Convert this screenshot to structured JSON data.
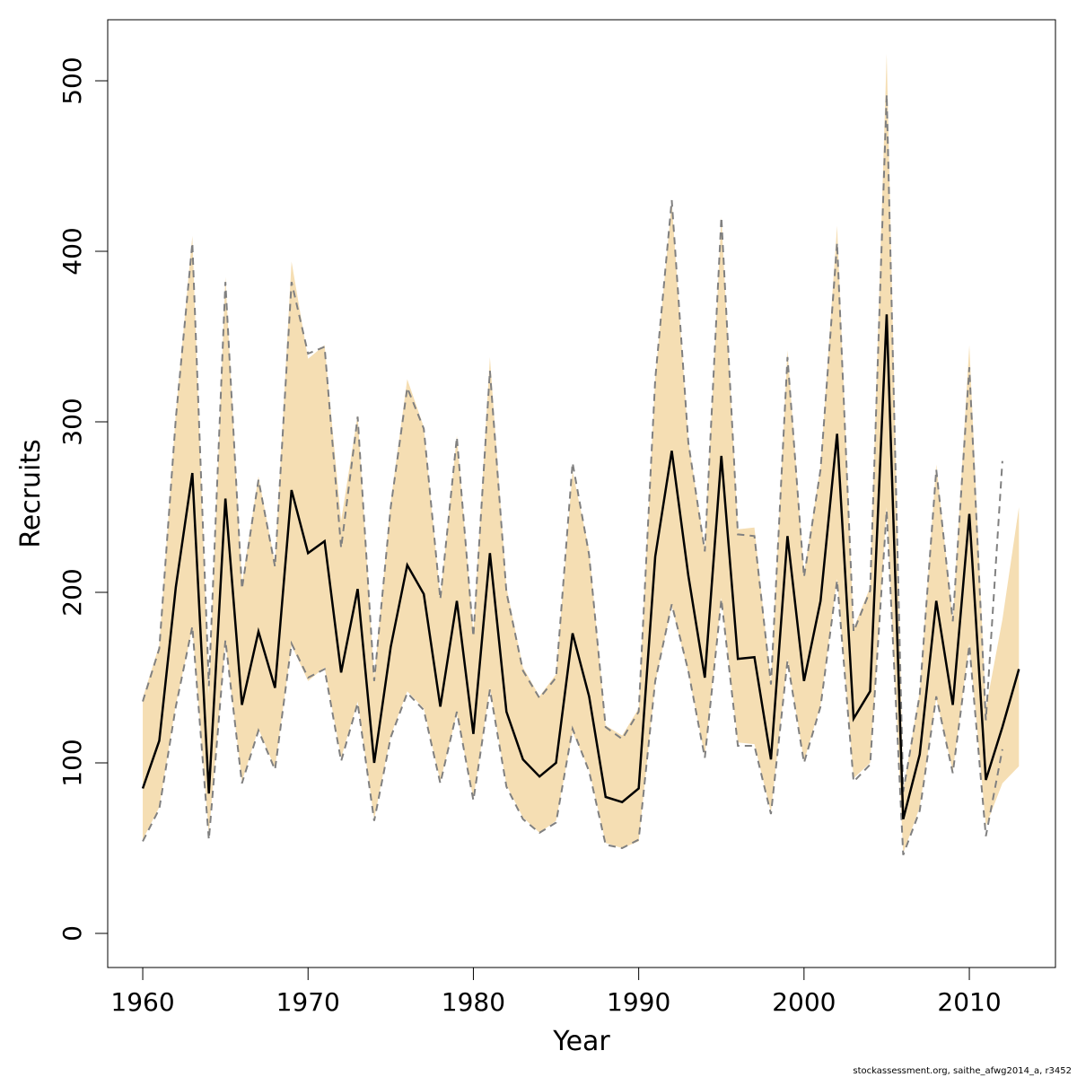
{
  "chart_data": {
    "type": "line",
    "xlabel": "Year",
    "ylabel": "Recruits",
    "footer": "stockassessment.org, saithe_afwg2014_a, r3452",
    "x": [
      1960,
      1961,
      1962,
      1963,
      1964,
      1965,
      1966,
      1967,
      1968,
      1969,
      1970,
      1971,
      1972,
      1973,
      1974,
      1975,
      1976,
      1977,
      1978,
      1979,
      1980,
      1981,
      1982,
      1983,
      1984,
      1985,
      1986,
      1987,
      1988,
      1989,
      1990,
      1991,
      1992,
      1993,
      1994,
      1995,
      1996,
      1997,
      1998,
      1999,
      2000,
      2001,
      2002,
      2003,
      2004,
      2005,
      2006,
      2007,
      2008,
      2009,
      2010,
      2011,
      2012,
      2013
    ],
    "line": {
      "color": "#000000",
      "values": [
        85,
        113,
        203,
        270,
        82,
        255,
        134,
        177,
        144,
        260,
        223,
        230,
        153,
        202,
        100,
        168,
        216,
        199,
        133,
        195,
        117,
        223,
        130,
        102,
        92,
        100,
        176,
        139,
        80,
        77,
        85,
        221,
        283,
        210,
        150,
        280,
        161,
        162,
        102,
        233,
        148,
        195,
        293,
        126,
        142,
        363,
        67,
        105,
        195,
        134,
        246,
        90,
        121,
        155
      ]
    },
    "band": {
      "color": "#f5deb3",
      "upper": [
        138,
        169,
        305,
        409,
        140,
        385,
        205,
        268,
        217,
        394,
        337,
        345,
        242,
        304,
        150,
        253,
        325,
        297,
        197,
        292,
        176,
        338,
        203,
        156,
        139,
        152,
        271,
        225,
        122,
        116,
        132,
        326,
        429,
        289,
        226,
        420,
        237,
        238,
        147,
        342,
        211,
        274,
        415,
        179,
        203,
        516,
        84,
        142,
        275,
        184,
        345,
        132,
        184,
        250
      ],
      "lower": [
        55,
        74,
        134,
        179,
        58,
        171,
        89,
        120,
        97,
        169,
        148,
        156,
        103,
        136,
        67,
        116,
        142,
        132,
        89,
        129,
        79,
        144,
        87,
        68,
        59,
        66,
        118,
        96,
        53,
        50,
        54,
        147,
        192,
        153,
        104,
        197,
        112,
        111,
        71,
        161,
        101,
        134,
        208,
        91,
        100,
        250,
        47,
        74,
        138,
        95,
        170,
        63,
        88,
        98
      ]
    },
    "previous": {
      "color": "#808080",
      "upper": [
        136,
        167,
        302,
        405,
        145,
        382,
        202,
        266,
        215,
        382,
        340,
        344,
        226,
        303,
        148,
        250,
        320,
        296,
        196,
        291,
        174,
        330,
        200,
        154,
        138,
        150,
        276,
        222,
        121,
        114,
        130,
        325,
        430,
        288,
        224,
        420,
        234,
        233,
        146,
        338,
        209,
        272,
        405,
        177,
        201,
        492,
        83,
        140,
        272,
        183,
        332,
        125,
        277,
        null
      ],
      "lower": [
        54,
        73,
        133,
        180,
        55,
        172,
        88,
        119,
        96,
        170,
        150,
        155,
        101,
        135,
        66,
        115,
        141,
        131,
        88,
        130,
        78,
        143,
        86,
        67,
        59,
        65,
        120,
        95,
        52,
        50,
        55,
        148,
        193,
        154,
        103,
        196,
        110,
        110,
        70,
        160,
        100,
        133,
        207,
        89,
        99,
        248,
        46,
        72,
        139,
        94,
        169,
        57,
        108,
        null
      ]
    },
    "xlim": [
      1957.88,
      2015.21
    ],
    "ylim": [
      -20,
      535.8
    ],
    "xticks": [
      1960,
      1970,
      1980,
      1990,
      2000,
      2010
    ],
    "yticks": [
      0,
      100,
      200,
      300,
      400,
      500
    ]
  }
}
